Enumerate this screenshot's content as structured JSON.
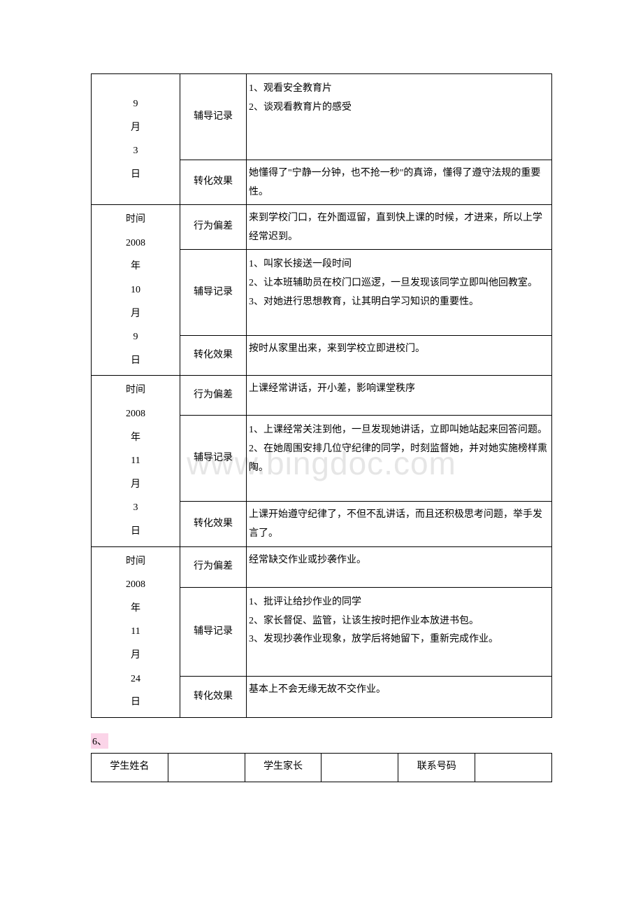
{
  "watermark": "www.bingdoc.com",
  "section_label": "6、",
  "table1": {
    "rows": [
      {
        "date": "9\n月\n3\n日",
        "groups": [
          {
            "label": "辅导记录",
            "content": "1、观看安全教育片\n2、谈观看教育片的感受"
          },
          {
            "label": "转化效果",
            "content": "她懂得了\"宁静一分钟，也不抢一秒\"的真谛，懂得了遵守法规的重要性。"
          }
        ]
      },
      {
        "date": "时间\n2008\n年\n10\n月\n9\n日",
        "groups": [
          {
            "label": "行为偏差",
            "content": "来到学校门口，在外面逗留，直到快上课的时候，才进来，所以上学经常迟到。"
          },
          {
            "label": "辅导记录",
            "content": "1、叫家长接送一段时间\n2、让本班辅助员在校门口巡逻，一旦发现该同学立即叫他回教室。\n3、对她进行思想教育，让其明白学习知识的重要性。"
          },
          {
            "label": "转化效果",
            "content": "按时从家里出来，来到学校立即进校门。"
          }
        ]
      },
      {
        "date": "时间\n2008\n年\n11\n月\n3\n日",
        "groups": [
          {
            "label": "行为偏差",
            "content": "上课经常讲话，开小差，影响课堂秩序"
          },
          {
            "label": "辅导记录",
            "content": "1、上课经常关注到他，一旦发现她讲话，立即叫她站起来回答问题。\n2、在她周围安排几位守纪律的同学，时刻监督她，并对她实施榜样熏陶。"
          },
          {
            "label": "转化效果",
            "content": "上课开始遵守纪律了，不但不乱讲话，而且还积极思考问题，举手发言了。"
          }
        ]
      },
      {
        "date": "时间\n2008\n年\n11\n月\n24\n日",
        "groups": [
          {
            "label": "行为偏差",
            "content": "经常缺交作业或抄袭作业。"
          },
          {
            "label": "辅导记录",
            "content": "1、批评让给抄作业的同学\n2、家长督促、监管，让该生按时把作业本放进书包。\n3、发现抄袭作业现象，放学后将她留下，重新完成作业。"
          },
          {
            "label": "转化效果",
            "content": "基本上不会无缘无故不交作业。"
          }
        ]
      }
    ]
  },
  "table2": {
    "headers": [
      "学生姓名",
      "",
      "学生家长",
      "",
      "联系号码",
      ""
    ]
  }
}
